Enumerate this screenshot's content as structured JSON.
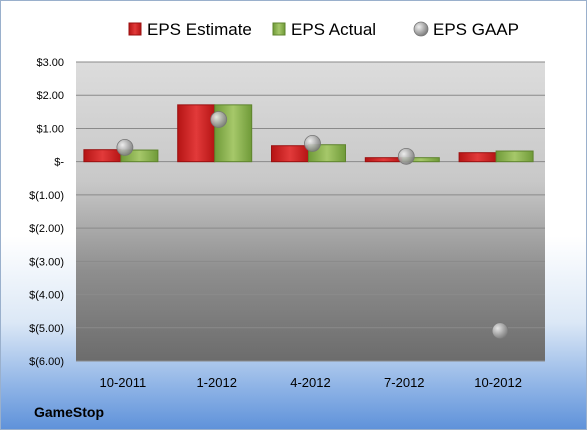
{
  "company": "GameStop",
  "chart_data": {
    "type": "bar",
    "title": "",
    "xlabel": "",
    "ylabel": "",
    "categories": [
      "10-2011",
      "1-2012",
      "4-2012",
      "7-2012",
      "10-2012"
    ],
    "series": [
      {
        "name": "EPS Estimate",
        "values": [
          0.36,
          1.71,
          0.48,
          0.12,
          0.27
        ],
        "color": "#d42020"
      },
      {
        "name": "EPS Actual",
        "values": [
          0.35,
          1.71,
          0.51,
          0.12,
          0.32
        ],
        "color": "#8cb050"
      },
      {
        "name": "EPS GAAP",
        "values": [
          0.43,
          1.27,
          0.55,
          0.16,
          -5.09
        ],
        "color": "#a8a8a8",
        "type": "scatter"
      }
    ],
    "ylim": [
      -6,
      3
    ],
    "yticks": [
      3,
      2,
      1,
      0,
      -1,
      -2,
      -3,
      -4,
      -5,
      -6
    ],
    "ytick_labels": [
      "$3.00",
      "$2.00",
      "$1.00",
      "$-",
      "$(1.00)",
      "$(2.00)",
      "$(3.00)",
      "$(4.00)",
      "$(5.00)",
      "$(6.00)"
    ],
    "grid": true,
    "legend_position": "top"
  }
}
